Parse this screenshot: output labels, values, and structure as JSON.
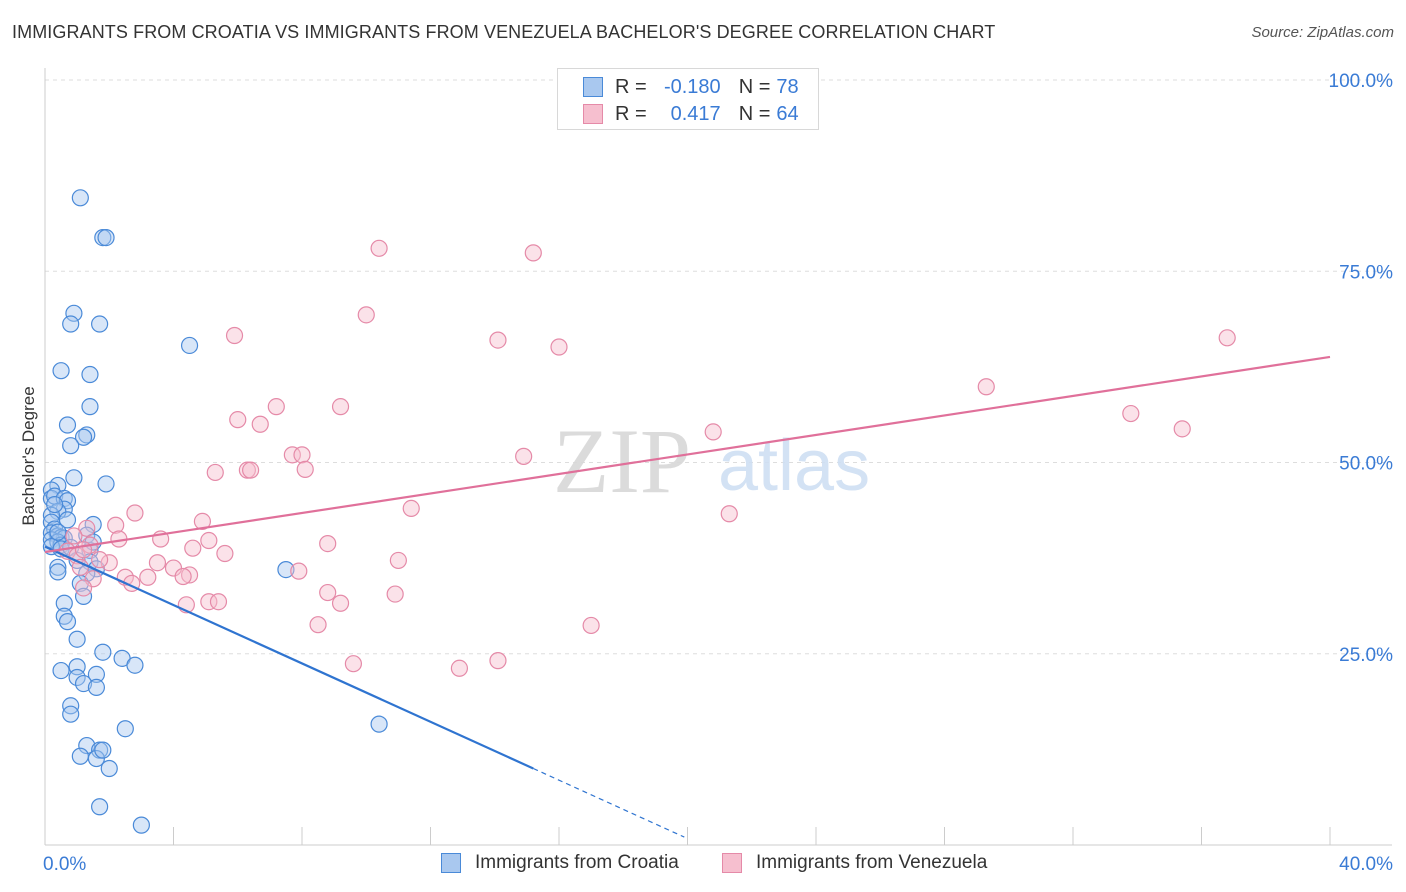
{
  "header": {
    "title": "IMMIGRANTS FROM CROATIA VS IMMIGRANTS FROM VENEZUELA BACHELOR'S DEGREE CORRELATION CHART",
    "source": "Source: ZipAtlas.com"
  },
  "legend": {
    "croatia": {
      "r_label": "R =",
      "r_value": "-0.180",
      "n_label": "N =",
      "n_value": "78"
    },
    "venezuela": {
      "r_label": "R =",
      "r_value": "0.417",
      "n_label": "N =",
      "n_value": "64"
    }
  },
  "bottom_legend": {
    "croatia": "Immigrants from Croatia",
    "venezuela": "Immigrants from Venezuela"
  },
  "watermark": {
    "zip": "ZIP",
    "atlas": "atlas"
  },
  "colors": {
    "croatia_fill": "#a9c8ef",
    "croatia_stroke": "#4a8ad8",
    "croatia_line": "#2f74d0",
    "venezuela_fill": "#f6bfcf",
    "venezuela_stroke": "#e58aa8",
    "venezuela_line": "#e0709a",
    "tick_label": "#3a7bd5",
    "grid": "#dddddd"
  },
  "chart_data": {
    "type": "scatter",
    "title": "IMMIGRANTS FROM CROATIA VS IMMIGRANTS FROM VENEZUELA BACHELOR'S DEGREE CORRELATION CHART",
    "xlabel": "",
    "ylabel": "Bachelor's Degree",
    "xlim": [
      0,
      40
    ],
    "ylim": [
      0,
      100
    ],
    "x_tick_labels": [
      "0.0%",
      "40.0%"
    ],
    "y_ticks": [
      25,
      50,
      75,
      100
    ],
    "y_tick_labels": [
      "25.0%",
      "50.0%",
      "75.0%",
      "100.0%"
    ],
    "grid": true,
    "series": [
      {
        "name": "Immigrants from Croatia",
        "color": "croatia",
        "r": -0.18,
        "n": 78,
        "trend": {
          "x0": 0,
          "y0": 39,
          "x1": 15.2,
          "y1": 10,
          "dash_to_x": 19.9
        },
        "points": [
          [
            1.1,
            84.6
          ],
          [
            1.8,
            79.4
          ],
          [
            1.9,
            79.4
          ],
          [
            0.9,
            69.5
          ],
          [
            0.8,
            68.1
          ],
          [
            1.7,
            68.1
          ],
          [
            4.5,
            65.3
          ],
          [
            0.5,
            62.0
          ],
          [
            1.4,
            61.5
          ],
          [
            1.4,
            57.3
          ],
          [
            0.7,
            54.9
          ],
          [
            1.3,
            53.6
          ],
          [
            1.2,
            53.3
          ],
          [
            0.8,
            52.2
          ],
          [
            0.9,
            48.0
          ],
          [
            1.9,
            47.2
          ],
          [
            0.4,
            47.0
          ],
          [
            0.2,
            46.4
          ],
          [
            0.2,
            45.3
          ],
          [
            0.3,
            45.6
          ],
          [
            0.6,
            45.3
          ],
          [
            0.7,
            45.0
          ],
          [
            0.6,
            43.9
          ],
          [
            0.4,
            43.6
          ],
          [
            0.2,
            43.1
          ],
          [
            0.2,
            42.2
          ],
          [
            0.7,
            42.5
          ],
          [
            1.5,
            41.9
          ],
          [
            0.3,
            41.3
          ],
          [
            0.2,
            40.8
          ],
          [
            0.4,
            40.4
          ],
          [
            0.5,
            40.2
          ],
          [
            0.6,
            40.1
          ],
          [
            1.3,
            40.5
          ],
          [
            0.2,
            39.9
          ],
          [
            0.4,
            39.6
          ],
          [
            0.5,
            39.2
          ],
          [
            0.2,
            39.0
          ],
          [
            0.5,
            38.7
          ],
          [
            0.8,
            38.9
          ],
          [
            1.4,
            38.5
          ],
          [
            1.0,
            37.2
          ],
          [
            1.4,
            37.0
          ],
          [
            0.4,
            36.3
          ],
          [
            1.6,
            36.1
          ],
          [
            0.4,
            35.7
          ],
          [
            1.3,
            35.5
          ],
          [
            7.5,
            36.0
          ],
          [
            1.1,
            34.2
          ],
          [
            1.2,
            32.5
          ],
          [
            0.6,
            31.6
          ],
          [
            0.6,
            29.9
          ],
          [
            0.7,
            29.2
          ],
          [
            1.0,
            26.9
          ],
          [
            1.8,
            25.2
          ],
          [
            2.4,
            24.4
          ],
          [
            2.8,
            23.5
          ],
          [
            1.0,
            23.3
          ],
          [
            0.5,
            22.8
          ],
          [
            1.6,
            22.3
          ],
          [
            1.0,
            21.9
          ],
          [
            1.2,
            21.1
          ],
          [
            1.6,
            20.6
          ],
          [
            0.8,
            18.2
          ],
          [
            0.8,
            17.1
          ],
          [
            10.4,
            15.8
          ],
          [
            2.5,
            15.2
          ],
          [
            1.3,
            13.0
          ],
          [
            1.7,
            12.4
          ],
          [
            1.1,
            11.6
          ],
          [
            1.6,
            11.3
          ],
          [
            2.0,
            10.0
          ],
          [
            1.7,
            5.0
          ],
          [
            3.0,
            2.6
          ],
          [
            1.8,
            12.4
          ],
          [
            0.4,
            40.9
          ],
          [
            0.3,
            44.5
          ],
          [
            1.5,
            39.6
          ]
        ]
      },
      {
        "name": "Immigrants from Venezuela",
        "color": "venezuela",
        "r": 0.417,
        "n": 64,
        "trend": {
          "x0": 0,
          "y0": 38.3,
          "x1": 40,
          "y1": 63.8
        },
        "points": [
          [
            10.4,
            78.0
          ],
          [
            15.2,
            77.4
          ],
          [
            10.0,
            69.3
          ],
          [
            5.9,
            66.6
          ],
          [
            14.1,
            66.0
          ],
          [
            16.0,
            65.1
          ],
          [
            36.8,
            66.3
          ],
          [
            29.3,
            59.9
          ],
          [
            7.2,
            57.3
          ],
          [
            9.2,
            57.3
          ],
          [
            33.8,
            56.4
          ],
          [
            6.0,
            55.6
          ],
          [
            6.7,
            55.0
          ],
          [
            35.4,
            54.4
          ],
          [
            20.8,
            54.0
          ],
          [
            7.7,
            51.0
          ],
          [
            8.0,
            51.0
          ],
          [
            14.9,
            50.8
          ],
          [
            5.3,
            48.7
          ],
          [
            6.3,
            49.0
          ],
          [
            6.4,
            49.0
          ],
          [
            8.1,
            49.1
          ],
          [
            11.4,
            44.0
          ],
          [
            21.3,
            43.3
          ],
          [
            2.8,
            43.4
          ],
          [
            4.9,
            42.3
          ],
          [
            2.2,
            41.8
          ],
          [
            1.3,
            41.4
          ],
          [
            0.9,
            40.4
          ],
          [
            2.3,
            40.0
          ],
          [
            3.6,
            40.0
          ],
          [
            5.1,
            39.8
          ],
          [
            8.8,
            39.4
          ],
          [
            1.4,
            39.2
          ],
          [
            4.6,
            38.8
          ],
          [
            0.7,
            38.4
          ],
          [
            5.6,
            38.1
          ],
          [
            1.0,
            37.8
          ],
          [
            11.0,
            37.2
          ],
          [
            3.5,
            36.9
          ],
          [
            2.0,
            36.9
          ],
          [
            4.0,
            36.2
          ],
          [
            1.1,
            36.3
          ],
          [
            7.9,
            35.8
          ],
          [
            4.5,
            35.3
          ],
          [
            4.3,
            35.1
          ],
          [
            2.5,
            35.0
          ],
          [
            3.2,
            35.0
          ],
          [
            1.5,
            34.8
          ],
          [
            2.7,
            34.2
          ],
          [
            1.2,
            33.6
          ],
          [
            8.8,
            33.0
          ],
          [
            10.9,
            32.8
          ],
          [
            5.1,
            31.8
          ],
          [
            5.4,
            31.8
          ],
          [
            9.2,
            31.6
          ],
          [
            4.4,
            31.4
          ],
          [
            8.5,
            28.8
          ],
          [
            17.0,
            28.7
          ],
          [
            9.6,
            23.7
          ],
          [
            14.1,
            24.1
          ],
          [
            12.9,
            23.1
          ],
          [
            1.2,
            38.6
          ],
          [
            1.7,
            37.3
          ]
        ]
      }
    ]
  }
}
